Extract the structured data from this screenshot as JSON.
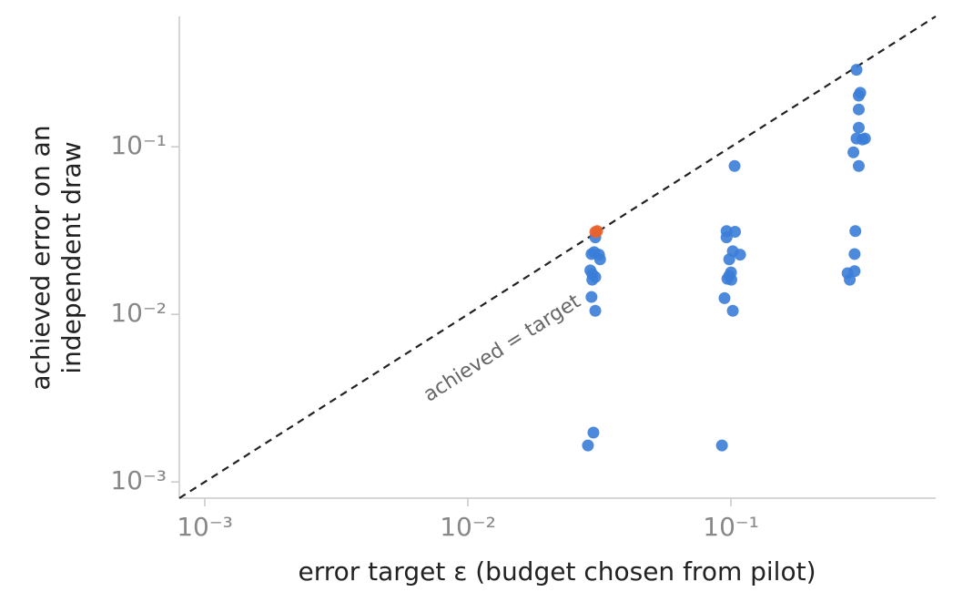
{
  "chart_data": {
    "type": "scatter",
    "xlabel": "error target ε (budget chosen from pilot)",
    "ylabel": [
      "achieved error on an",
      "independent draw"
    ],
    "annotation": "achieved = target",
    "xscale": "log",
    "yscale": "log",
    "xlim": [
      0.0008,
      0.6
    ],
    "ylim": [
      0.0008,
      0.6
    ],
    "xticks": [
      {
        "value": 0.001,
        "label": "10⁻³"
      },
      {
        "value": 0.01,
        "label": "10⁻²"
      },
      {
        "value": 0.1,
        "label": "10⁻¹"
      }
    ],
    "yticks": [
      {
        "value": 0.001,
        "label": "10⁻³"
      },
      {
        "value": 0.01,
        "label": "10⁻²"
      },
      {
        "value": 0.1,
        "label": "10⁻¹"
      }
    ],
    "series": [
      {
        "color": "#3a7dd8",
        "x": [
          0.0305,
          0.0302,
          0.0295,
          0.0315,
          0.0318,
          0.0292,
          0.0297,
          0.0305,
          0.0297,
          0.0295,
          0.0305,
          0.03,
          0.0286,
          0.1032,
          0.0962,
          0.1036,
          0.0962,
          0.1016,
          0.1083,
          0.0985,
          0.1,
          0.0985,
          0.0969,
          0.1003,
          0.0945,
          0.1016,
          0.0924,
          0.3,
          0.31,
          0.306,
          0.306,
          0.306,
          0.3,
          0.316,
          0.323,
          0.292,
          0.306,
          0.297,
          0.295,
          0.2775,
          0.295,
          0.2828
        ],
        "values": [
          0.0288,
          0.0235,
          0.0229,
          0.0227,
          0.0213,
          0.0183,
          0.0174,
          0.0167,
          0.0161,
          0.0127,
          0.0105,
          0.00197,
          0.00165,
          0.0768,
          0.0314,
          0.0311,
          0.0288,
          0.0238,
          0.0227,
          0.0213,
          0.0178,
          0.017,
          0.0163,
          0.0161,
          0.0125,
          0.0105,
          0.00165,
          0.288,
          0.21,
          0.202,
          0.167,
          0.13,
          0.112,
          0.1106,
          0.112,
          0.0927,
          0.0768,
          0.0314,
          0.0229,
          0.0176,
          0.0181,
          0.0161
        ]
      },
      {
        "color": "#e8622c",
        "x": [
          0.031,
          0.0305
        ],
        "values": [
          0.0314,
          0.031
        ]
      }
    ]
  }
}
